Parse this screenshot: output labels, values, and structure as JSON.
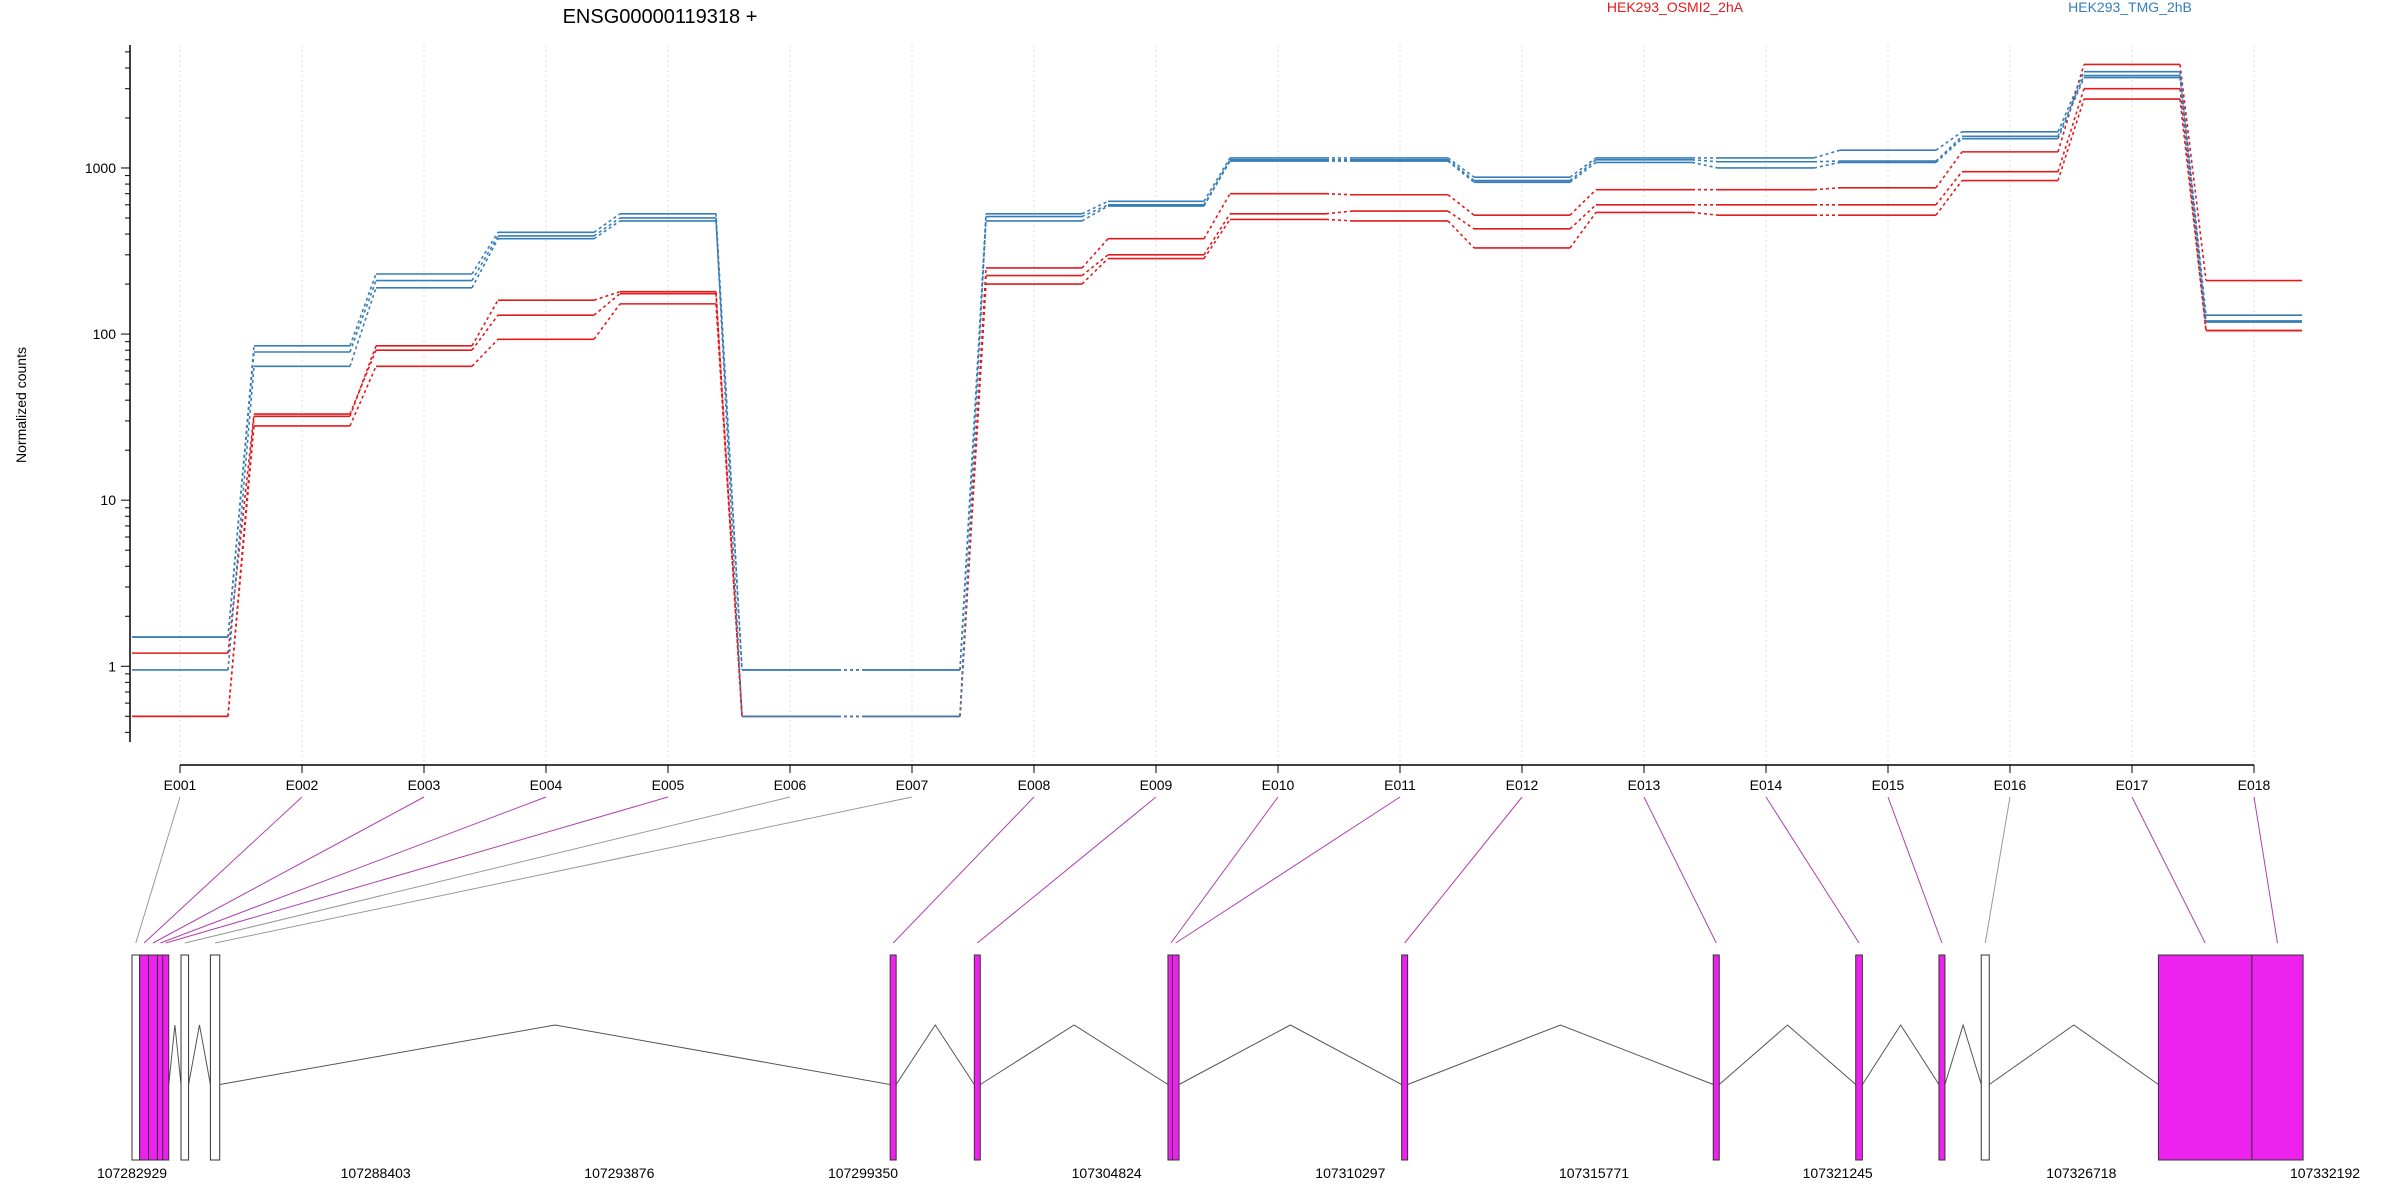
{
  "chart_data": {
    "type": "line",
    "title": "ENSG00000119318 +",
    "xlabel": "",
    "ylabel": "Normalized counts",
    "y_scale": "log",
    "ylim": [
      0.5,
      5500
    ],
    "y_ticks": [
      "1",
      "10",
      "100",
      "1000"
    ],
    "grid": "vertical dotted at exon ticks",
    "legend_placement": "top",
    "colors": {
      "group_a": "#e41a1c",
      "group_b": "#377eb8",
      "exon_tested": "#ee22ee",
      "exon_untested": "#d3d3d3",
      "connector_tested": "#b040b0",
      "connector_untested": "#999999"
    },
    "categories": [
      "E001",
      "E002",
      "E003",
      "E004",
      "E005",
      "E006",
      "E007",
      "E008",
      "E009",
      "E010",
      "E011",
      "E012",
      "E013",
      "E014",
      "E015",
      "E016",
      "E017",
      "E018"
    ],
    "groups": [
      {
        "label": "HEK293_OSMI2_2hA",
        "color": "#e41a1c"
      },
      {
        "label": "HEK293_TMG_2hB",
        "color": "#377eb8"
      }
    ],
    "series": [
      {
        "color": "#e41a1c",
        "values": [
          0.5,
          32,
          85,
          160,
          180,
          0.5,
          0.5,
          250,
          375,
          700,
          690,
          520,
          740,
          740,
          760,
          1250,
          4200,
          210
        ]
      },
      {
        "color": "#e41a1c",
        "values": [
          1.2,
          33,
          80,
          130,
          175,
          0.5,
          0.5,
          225,
          300,
          530,
          550,
          430,
          600,
          600,
          600,
          950,
          3000,
          105
        ]
      },
      {
        "color": "#e41a1c",
        "values": [
          0.5,
          28,
          64,
          93,
          152,
          0.5,
          0.5,
          200,
          285,
          490,
          480,
          330,
          540,
          520,
          520,
          840,
          2600,
          105
        ]
      },
      {
        "color": "#377eb8",
        "values": [
          1.5,
          85,
          230,
          410,
          530,
          0.95,
          0.95,
          530,
          630,
          1150,
          1150,
          880,
          1150,
          1150,
          1280,
          1650,
          3800,
          130
        ]
      },
      {
        "color": "#377eb8",
        "values": [
          1.5,
          78,
          210,
          390,
          500,
          0.5,
          0.5,
          510,
          600,
          1120,
          1120,
          840,
          1120,
          1090,
          1100,
          1550,
          3600,
          120
        ]
      },
      {
        "color": "#377eb8",
        "values": [
          0.95,
          64,
          190,
          375,
          480,
          0.95,
          0.95,
          480,
          590,
          1100,
          1100,
          820,
          1080,
          1000,
          1080,
          1500,
          3500,
          118
        ]
      }
    ],
    "gene_model": {
      "coordinates": [
        "107282929",
        "107288403",
        "107293876",
        "107299350",
        "107304824",
        "107310297",
        "107315771",
        "107321245",
        "107326718",
        "107332192"
      ],
      "genomic_range": [
        107282929,
        107332192
      ],
      "exons": [
        {
          "id": "E001",
          "start": 107282929,
          "end": 107283100,
          "tested": false
        },
        {
          "id": "E002",
          "start": 107283100,
          "end": 107283300,
          "tested": true
        },
        {
          "id": "E003",
          "start": 107283300,
          "end": 107283500,
          "tested": true
        },
        {
          "id": "E004",
          "start": 107283500,
          "end": 107283620,
          "tested": true
        },
        {
          "id": "E005",
          "start": 107283620,
          "end": 107283700,
          "tested": true
        },
        {
          "id": "E006",
          "start": 107284030,
          "end": 107284200,
          "tested": false
        },
        {
          "id": "E007",
          "start": 107284690,
          "end": 107284900,
          "tested": false
        },
        {
          "id": "E008",
          "start": 107299960,
          "end": 107300050,
          "tested": true
        },
        {
          "id": "E009",
          "start": 107301850,
          "end": 107301950,
          "tested": true
        },
        {
          "id": "E010",
          "start": 107306200,
          "end": 107306300,
          "tested": true
        },
        {
          "id": "E011",
          "start": 107306300,
          "end": 107306450,
          "tested": true
        },
        {
          "id": "E012",
          "start": 107311450,
          "end": 107311530,
          "tested": true
        },
        {
          "id": "E013",
          "start": 107318450,
          "end": 107318580,
          "tested": true
        },
        {
          "id": "E014",
          "start": 107321650,
          "end": 107321800,
          "tested": true
        },
        {
          "id": "E015",
          "start": 107323520,
          "end": 107323650,
          "tested": true
        },
        {
          "id": "E016",
          "start": 107324470,
          "end": 107324650,
          "tested": false
        },
        {
          "id": "E017",
          "start": 107328450,
          "end": 107330550,
          "tested": true
        },
        {
          "id": "E018",
          "start": 107330550,
          "end": 107331700,
          "tested": true
        }
      ]
    }
  }
}
